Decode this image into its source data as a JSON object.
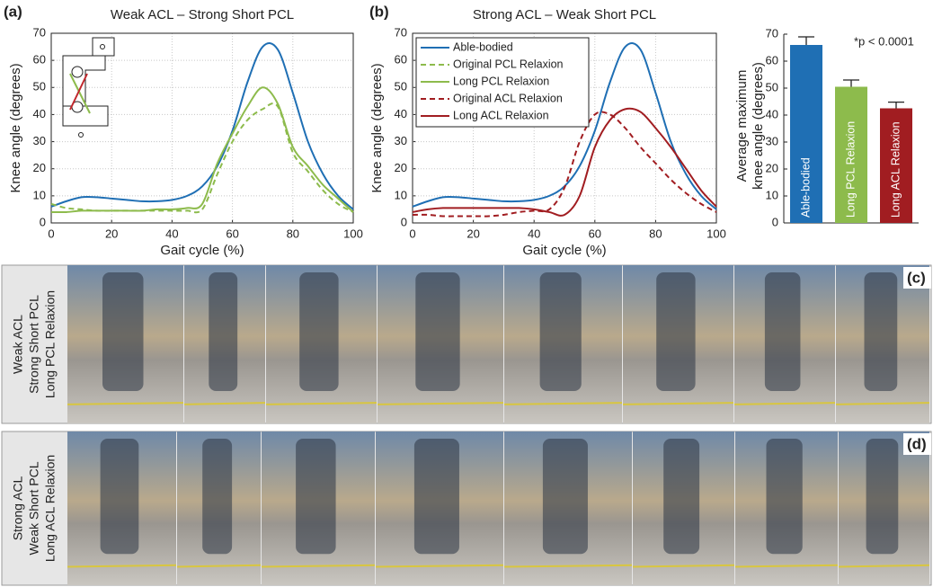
{
  "chart_data": [
    {
      "type": "line",
      "panel": "(a)",
      "title": "Weak ACL – Strong Short PCL",
      "xlabel": "Gait cycle (%)",
      "ylabel": "Knee angle (degrees)",
      "xlim": [
        0,
        100
      ],
      "ylim": [
        0,
        70
      ],
      "xticks": [
        0,
        20,
        40,
        60,
        80,
        100
      ],
      "yticks": [
        0,
        10,
        20,
        30,
        40,
        50,
        60,
        70
      ],
      "grid": true,
      "x": [
        0,
        5,
        10,
        15,
        20,
        25,
        30,
        35,
        40,
        45,
        50,
        55,
        60,
        65,
        70,
        75,
        80,
        85,
        90,
        95,
        100
      ],
      "series": [
        {
          "color": "#1f6fb4",
          "style": "solid",
          "values": [
            6,
            8,
            9.5,
            9.5,
            9,
            8.5,
            8,
            8,
            8.5,
            10,
            13.5,
            21,
            34,
            52,
            65,
            64,
            48,
            30,
            18,
            10,
            5
          ]
        },
        {
          "name": "Original PCL Relaxion",
          "color": "#8dbb4c",
          "style": "dashed",
          "values": [
            7,
            5.5,
            5,
            4.5,
            4.5,
            4.5,
            4.5,
            4.5,
            4.5,
            4.5,
            5,
            18,
            30,
            38,
            42,
            43,
            26,
            19,
            12,
            7,
            4
          ]
        },
        {
          "name": "Long PCL Relaxion",
          "color": "#8dbb4c",
          "style": "solid",
          "values": [
            4,
            4,
            4.5,
            4.5,
            4.5,
            4.5,
            4.5,
            5,
            5,
            5.5,
            7,
            22,
            33,
            43,
            50,
            44,
            28,
            21,
            14,
            9,
            4
          ]
        }
      ]
    },
    {
      "type": "line",
      "panel": "(b)",
      "title": "Strong ACL – Weak Short PCL",
      "xlabel": "Gait cycle (%)",
      "ylabel": "Knee angle (degrees)",
      "xlim": [
        0,
        100
      ],
      "ylim": [
        0,
        70
      ],
      "xticks": [
        0,
        20,
        40,
        60,
        80,
        100
      ],
      "yticks": [
        0,
        10,
        20,
        30,
        40,
        50,
        60,
        70
      ],
      "grid": true,
      "x": [
        0,
        5,
        10,
        15,
        20,
        25,
        30,
        35,
        40,
        45,
        50,
        55,
        60,
        65,
        70,
        75,
        80,
        85,
        90,
        95,
        100
      ],
      "series": [
        {
          "name": "Able-bodied",
          "color": "#1f6fb4",
          "style": "solid",
          "values": [
            6,
            8,
            9.5,
            9.5,
            9,
            8.5,
            8,
            8,
            8.5,
            10,
            13.5,
            21,
            34,
            52,
            65,
            64,
            48,
            30,
            18,
            10,
            5
          ]
        },
        {
          "name": "Original ACL Relaxion",
          "color": "#a11d21",
          "style": "dashed",
          "values": [
            3,
            3,
            2.5,
            2.5,
            2.5,
            2.5,
            3,
            4,
            4.5,
            5,
            13,
            30,
            40,
            40,
            35,
            28,
            22,
            16,
            11,
            7,
            4
          ]
        },
        {
          "name": "Long ACL Relaxion",
          "color": "#a11d21",
          "style": "solid",
          "values": [
            4,
            5,
            5.5,
            5.5,
            5.5,
            5.5,
            5.5,
            5.5,
            5,
            4,
            3,
            10,
            28,
            38,
            42,
            41,
            35,
            28,
            20,
            12,
            6
          ]
        }
      ]
    },
    {
      "type": "bar",
      "ylabel": [
        "Average maximum",
        "knee angle (degrees)"
      ],
      "annotation": "*p < 0.0001",
      "ylim": [
        0,
        70
      ],
      "yticks": [
        0,
        10,
        20,
        30,
        40,
        50,
        60,
        70
      ],
      "categories": [
        "Able-bodied",
        "Long PCL Relaxion",
        "Long ACL Relaxion"
      ],
      "values": [
        66,
        50.5,
        42.5
      ],
      "errors": [
        3,
        2.5,
        2.3
      ],
      "colors": [
        "#1f6fb4",
        "#8dbb4c",
        "#a11d21"
      ]
    }
  ],
  "figure": {
    "rows": [
      {
        "panel": "(c)",
        "caption": [
          "Weak ACL",
          "Strong Short PCL",
          "Long PCL Relaxion"
        ]
      },
      {
        "panel": "(d)",
        "caption": [
          "Strong  ACL",
          "Weak Short PCL",
          "Long ACL Relaxion"
        ]
      }
    ]
  }
}
